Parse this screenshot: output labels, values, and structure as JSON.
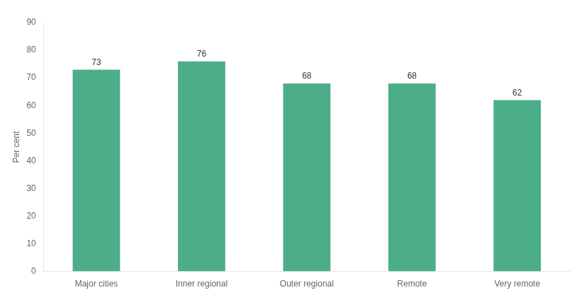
{
  "chart_data": {
    "type": "bar",
    "categories": [
      "Major cities",
      "Inner regional",
      "Outer regional",
      "Remote",
      "Very remote"
    ],
    "values": [
      73,
      76,
      68,
      68,
      62
    ],
    "color": "#4cae88",
    "ylabel": "Per cent",
    "ylim": [
      0,
      90
    ],
    "yticks": [
      0,
      10,
      20,
      30,
      40,
      50,
      60,
      70,
      80,
      90
    ],
    "grid": false,
    "data_labels": true
  }
}
